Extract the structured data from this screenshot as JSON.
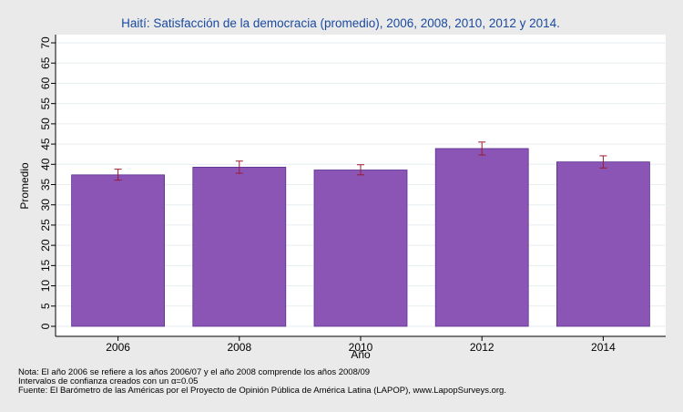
{
  "chart_data": {
    "type": "bar",
    "title": "Haití: Satisfacción de la democracia (promedio), 2006, 2008, 2010, 2012 y 2014.",
    "xlabel": "Año",
    "ylabel": "Promedio",
    "categories": [
      "2006",
      "2008",
      "2010",
      "2012",
      "2014"
    ],
    "values": [
      37.4,
      39.3,
      38.6,
      43.9,
      40.6
    ],
    "ci_low": [
      36.1,
      37.8,
      37.4,
      42.3,
      39.1
    ],
    "ci_high": [
      38.8,
      40.8,
      39.9,
      45.5,
      42.1
    ],
    "ylim": [
      0,
      70
    ],
    "yticks": [
      0,
      5,
      10,
      15,
      20,
      25,
      30,
      35,
      40,
      45,
      50,
      55,
      60,
      65,
      70
    ],
    "grid": true,
    "bar_color": "#8b55b5",
    "error_color": "#9b1b30",
    "notes": [
      "Nota: El año 2006 se refiere a los años 2006/07 y el año 2008 comprende los años 2008/09",
      "Intervalos de confianza creados con un α=0.05",
      "Fuente: El Barómetro de las Américas por el Proyecto de Opinión Pública de América Latina (LAPOP), www.LapopSurveys.org."
    ]
  }
}
